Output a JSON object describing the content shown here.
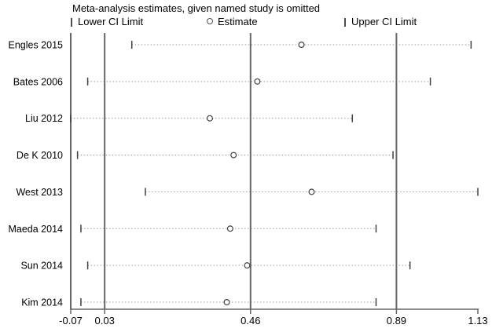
{
  "chart_data": {
    "type": "forest",
    "title": "Meta-analysis estimates, given named study is omitted",
    "legend": [
      {
        "symbol": "tick",
        "label": "Lower CI Limit"
      },
      {
        "symbol": "circle",
        "label": "Estimate"
      },
      {
        "symbol": "tick",
        "label": "Upper CI Limit"
      }
    ],
    "x_axis": {
      "range": [
        -0.07,
        1.13
      ],
      "tick_values": [
        -0.07,
        0.03,
        0.46,
        0.89,
        1.13
      ],
      "tick_labels": [
        "-0.07",
        "0.03",
        "0.46",
        "0.89",
        "1.13"
      ]
    },
    "reference_lines": [
      0.03,
      0.46,
      0.89
    ],
    "studies": [
      {
        "label": "Engles 2015",
        "lower": 0.11,
        "estimate": 0.61,
        "upper": 1.11
      },
      {
        "label": "Bates 2006",
        "lower": -0.02,
        "estimate": 0.48,
        "upper": 0.99
      },
      {
        "label": "Liu 2012",
        "lower": -0.07,
        "estimate": 0.34,
        "upper": 0.76
      },
      {
        "label": "De K 2010",
        "lower": -0.05,
        "estimate": 0.41,
        "upper": 0.88
      },
      {
        "label": "West 2013",
        "lower": 0.15,
        "estimate": 0.64,
        "upper": 1.13
      },
      {
        "label": "Maeda 2014",
        "lower": -0.04,
        "estimate": 0.4,
        "upper": 0.83
      },
      {
        "label": "Sun 2014",
        "lower": -0.02,
        "estimate": 0.45,
        "upper": 0.93
      },
      {
        "label": "Kim 2014",
        "lower": -0.04,
        "estimate": 0.39,
        "upper": 0.83
      }
    ],
    "grid": "vertical-reference-lines-only",
    "legend_position": "top",
    "colors": {
      "grid_line": "#666666",
      "dotted_line": "#9a9a9a",
      "marker": "#404040",
      "text": "#000000",
      "background": "#ffffff"
    }
  }
}
